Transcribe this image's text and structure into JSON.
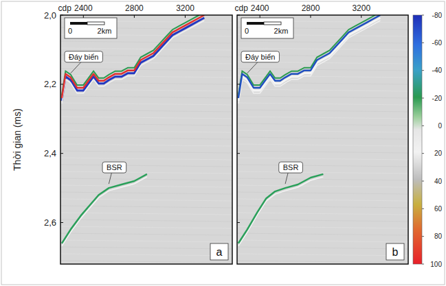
{
  "chart_data": [
    {
      "type": "line",
      "title": "a",
      "x_label": "cdp",
      "y_label": "Thời gian (ms)",
      "xlim": [
        2220,
        3570
      ],
      "ylim": [
        2.0,
        2.72
      ],
      "xticks": [
        2400,
        2800,
        3200
      ],
      "yticks": [
        {
          "value": 2.0,
          "label": "2,0"
        },
        {
          "value": 2.2,
          "label": "2,2"
        },
        {
          "value": 2.4,
          "label": "2,4"
        },
        {
          "value": 2.6,
          "label": "2,6"
        }
      ],
      "scale_bar": [
        "0",
        "2km"
      ],
      "series": [
        {
          "name": "Đáy biển",
          "color": "#e03030",
          "x": [
            2230,
            2260,
            2300,
            2350,
            2400,
            2440,
            2480,
            2520,
            2560,
            2600,
            2650,
            2700,
            2750,
            2800,
            2850,
            2900,
            2950,
            3000,
            3050,
            3100,
            3150,
            3200,
            3250,
            3300,
            3350
          ],
          "values": [
            2.24,
            2.17,
            2.18,
            2.21,
            2.21,
            2.19,
            2.17,
            2.19,
            2.19,
            2.18,
            2.17,
            2.17,
            2.16,
            2.16,
            2.13,
            2.12,
            2.11,
            2.09,
            2.07,
            2.05,
            2.04,
            2.03,
            2.02,
            2.01,
            2.0
          ]
        },
        {
          "name": "BSR",
          "color": "#2aa05a",
          "x": [
            2230,
            2300,
            2380,
            2450,
            2520,
            2600,
            2700,
            2800,
            2900
          ],
          "values": [
            2.66,
            2.62,
            2.58,
            2.55,
            2.52,
            2.5,
            2.49,
            2.48,
            2.46
          ]
        }
      ]
    },
    {
      "type": "line",
      "title": "b",
      "x_label": "cdp",
      "tick_labels": "x",
      "xlim": [
        2220,
        3570
      ],
      "ylim": [
        2.0,
        2.72
      ],
      "xticks": [
        2400,
        2800,
        3200
      ],
      "yticks": [
        {
          "value": 2.0,
          "label": "2,0"
        },
        {
          "value": 2.2,
          "label": "2,2"
        },
        {
          "value": 2.4,
          "label": "2,4"
        },
        {
          "value": 2.6,
          "label": "2,6"
        }
      ],
      "scale_bar": [
        "0",
        "2km"
      ],
      "series": [
        {
          "name": "Đáy biển",
          "color": "#2050c0",
          "x": [
            2230,
            2260,
            2300,
            2350,
            2400,
            2440,
            2480,
            2520,
            2560,
            2600,
            2650,
            2700,
            2750,
            2800,
            2850,
            2900,
            2950,
            3000,
            3050,
            3100,
            3150,
            3200,
            3250,
            3300,
            3350
          ],
          "values": [
            2.24,
            2.17,
            2.18,
            2.21,
            2.21,
            2.19,
            2.17,
            2.19,
            2.19,
            2.18,
            2.17,
            2.17,
            2.16,
            2.16,
            2.13,
            2.12,
            2.11,
            2.09,
            2.07,
            2.05,
            2.04,
            2.03,
            2.02,
            2.01,
            2.0
          ]
        },
        {
          "name": "BSR",
          "color": "#2aa05a",
          "x": [
            2230,
            2300,
            2380,
            2450,
            2520,
            2600,
            2700,
            2800,
            2900
          ],
          "values": [
            2.66,
            2.62,
            2.57,
            2.53,
            2.51,
            2.5,
            2.49,
            2.47,
            2.46
          ]
        }
      ]
    }
  ],
  "colorbar": {
    "lim": [
      -80,
      100
    ],
    "ticks": [
      -80,
      -60,
      -40,
      -20,
      0,
      20,
      40,
      60,
      80,
      100
    ]
  }
}
